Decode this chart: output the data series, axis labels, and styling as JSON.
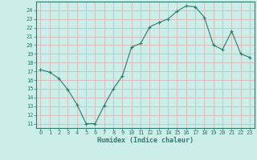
{
  "x": [
    0,
    1,
    2,
    3,
    4,
    5,
    6,
    7,
    8,
    9,
    10,
    11,
    12,
    13,
    14,
    15,
    16,
    17,
    18,
    19,
    20,
    21,
    22,
    23
  ],
  "y": [
    17.2,
    16.9,
    16.2,
    14.9,
    13.2,
    11.0,
    11.0,
    13.1,
    15.0,
    16.5,
    19.8,
    20.2,
    22.1,
    22.6,
    23.0,
    23.9,
    24.5,
    24.4,
    23.2,
    20.0,
    19.5,
    21.6,
    19.0,
    18.6
  ],
  "xlim": [
    -0.5,
    23.5
  ],
  "ylim": [
    10.5,
    25.0
  ],
  "yticks": [
    11,
    12,
    13,
    14,
    15,
    16,
    17,
    18,
    19,
    20,
    21,
    22,
    23,
    24
  ],
  "xticks": [
    0,
    1,
    2,
    3,
    4,
    5,
    6,
    7,
    8,
    9,
    10,
    11,
    12,
    13,
    14,
    15,
    16,
    17,
    18,
    19,
    20,
    21,
    22,
    23
  ],
  "xlabel": "Humidex (Indice chaleur)",
  "line_color": "#2d7a6e",
  "marker_color": "#2d7a6e",
  "bg_color": "#cceee8",
  "grid_color": "#d8b8b8",
  "axis_color": "#2d7a6e",
  "tick_color": "#2d7a6e",
  "label_color": "#2d7a6e",
  "figsize": [
    3.2,
    2.0
  ],
  "dpi": 100
}
